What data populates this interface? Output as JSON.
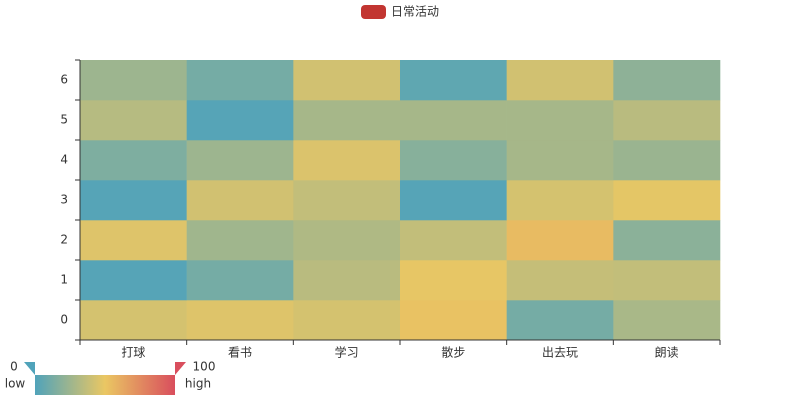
{
  "chart_data": {
    "type": "heatmap",
    "legend": {
      "name": "日常活动",
      "color": "#c23531"
    },
    "categories": [
      "打球",
      "看书",
      "学习",
      "散步",
      "出去玩",
      "朗读"
    ],
    "y_categories": [
      "0",
      "1",
      "2",
      "3",
      "4",
      "5",
      "6"
    ],
    "values": [
      [
        43,
        46,
        43,
        52,
        12,
        29
      ],
      [
        2,
        12,
        34,
        49,
        38,
        37
      ],
      [
        46,
        26,
        31,
        37,
        55,
        19
      ],
      [
        2,
        42,
        37,
        2,
        43,
        48
      ],
      [
        15,
        25,
        45,
        18,
        28,
        24
      ],
      [
        33,
        2,
        28,
        28,
        28,
        34
      ],
      [
        25,
        12,
        42,
        5,
        42,
        20
      ]
    ],
    "visual_map": {
      "min": 0,
      "max": 100,
      "low_text": "low",
      "high_text": "high",
      "colors": [
        "#50a3ba",
        "#eac763",
        "#d94e5d"
      ]
    }
  }
}
